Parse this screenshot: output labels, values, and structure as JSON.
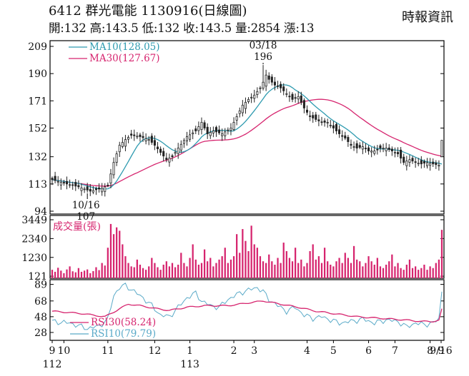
{
  "header": {
    "code": "6412",
    "name": "群光電能",
    "date_tag": "1130916(日線圖)",
    "source": "時報資訊",
    "stats": [
      {
        "label": "開",
        "value": "132"
      },
      {
        "label": "高",
        "value": "143.5"
      },
      {
        "label": "低",
        "value": "132"
      },
      {
        "label": "收",
        "value": "143.5"
      },
      {
        "label": "量",
        "value": "2854"
      },
      {
        "label": "漲",
        "value": "13"
      }
    ]
  },
  "colors": {
    "candle": "#222222",
    "ma10": "#2f9bb0",
    "ma30": "#d6246e",
    "volume": "#d6246e",
    "rsi30": "#d6246e",
    "rsi10": "#5aaac8",
    "frame": "#000000"
  },
  "chart_data": {
    "type": "candlestick",
    "price_panel": {
      "y_ticks": [
        209,
        190,
        171,
        152,
        132,
        113,
        94
      ],
      "ylim": [
        94,
        209
      ],
      "legend": [
        {
          "label": "MA10(128.05)",
          "color": "#2f9bb0"
        },
        {
          "label": "MA30(127.67)",
          "color": "#d6246e"
        }
      ],
      "annotations": [
        {
          "date": "03/18",
          "value": "196",
          "kind": "high"
        },
        {
          "date": "10/16",
          "value": "107",
          "kind": "low"
        }
      ],
      "close_anchors": [
        [
          0,
          116
        ],
        [
          5,
          113
        ],
        [
          9,
          111
        ],
        [
          13,
          108
        ],
        [
          17,
          110
        ],
        [
          19,
          112
        ],
        [
          21,
          128
        ],
        [
          23,
          140
        ],
        [
          25,
          144
        ],
        [
          27,
          147
        ],
        [
          30,
          146
        ],
        [
          33,
          144
        ],
        [
          35,
          140
        ],
        [
          37,
          135
        ],
        [
          39,
          130
        ],
        [
          41,
          132
        ],
        [
          43,
          138
        ],
        [
          46,
          146
        ],
        [
          49,
          150
        ],
        [
          51,
          156
        ],
        [
          53,
          148
        ],
        [
          55,
          150
        ],
        [
          58,
          148
        ],
        [
          61,
          152
        ],
        [
          63,
          160
        ],
        [
          65,
          168
        ],
        [
          67,
          172
        ],
        [
          69,
          175
        ],
        [
          71,
          180
        ],
        [
          72,
          184
        ],
        [
          73,
          189
        ],
        [
          74,
          186
        ],
        [
          76,
          182
        ],
        [
          78,
          180
        ],
        [
          80,
          176
        ],
        [
          82,
          172
        ],
        [
          84,
          174
        ],
        [
          86,
          166
        ],
        [
          88,
          160
        ],
        [
          90,
          158
        ],
        [
          92,
          156
        ],
        [
          94,
          156
        ],
        [
          96,
          152
        ],
        [
          98,
          148
        ],
        [
          100,
          145
        ],
        [
          102,
          140
        ],
        [
          104,
          138
        ],
        [
          106,
          139
        ],
        [
          108,
          136
        ],
        [
          110,
          136
        ],
        [
          112,
          138
        ],
        [
          114,
          138
        ],
        [
          116,
          136
        ],
        [
          118,
          134
        ],
        [
          120,
          128
        ],
        [
          122,
          130
        ],
        [
          124,
          128
        ],
        [
          126,
          127
        ],
        [
          128,
          128
        ],
        [
          130,
          127
        ],
        [
          132,
          126
        ],
        [
          133,
          124
        ],
        [
          134,
          130.5
        ],
        [
          135,
          143.5
        ]
      ]
    },
    "volume_panel": {
      "title": "成交量(張)",
      "y_ticks": [
        3449,
        2340,
        1230,
        121
      ],
      "ylim": [
        121,
        3449
      ],
      "bars": [
        500,
        380,
        620,
        450,
        300,
        520,
        700,
        410,
        350,
        600,
        380,
        450,
        520,
        300,
        420,
        650,
        480,
        900,
        750,
        1800,
        3200,
        2600,
        3000,
        2800,
        2000,
        1300,
        900,
        700,
        650,
        1100,
        800,
        600,
        500,
        700,
        1200,
        900,
        650,
        500,
        800,
        1000,
        700,
        900,
        650,
        800,
        1500,
        900,
        700,
        1200,
        2000,
        1100,
        800,
        900,
        1700,
        1000,
        1200,
        700,
        900,
        1100,
        1300,
        1800,
        900,
        1100,
        1300,
        2600,
        1500,
        2900,
        2200,
        1600,
        3100,
        2000,
        1800,
        1300,
        1000,
        900,
        1400,
        1000,
        800,
        1200,
        900,
        2100,
        1600,
        1200,
        1000,
        1800,
        900,
        1100,
        700,
        900,
        1600,
        2000,
        1100,
        1300,
        900,
        1800,
        1000,
        800,
        700,
        1000,
        1200,
        900,
        1500,
        1200,
        900,
        1900,
        1100,
        1000,
        700,
        900,
        1300,
        1000,
        800,
        1200,
        700,
        600,
        800,
        1000,
        1400,
        700,
        900,
        600,
        500,
        800,
        1100,
        600,
        700,
        500,
        600,
        800,
        500,
        700,
        600,
        900,
        1100,
        2854
      ]
    },
    "rsi_panel": {
      "y_ticks": [
        89,
        68,
        48,
        28
      ],
      "ylim": [
        28,
        89
      ],
      "legend": [
        {
          "label": "RSI30(58.24)",
          "color": "#d6246e"
        },
        {
          "label": "RSI10(79.79)",
          "color": "#5aaac8"
        }
      ],
      "rsi30_anchors": [
        [
          0,
          55
        ],
        [
          10,
          52
        ],
        [
          18,
          48
        ],
        [
          22,
          56
        ],
        [
          26,
          64
        ],
        [
          30,
          62
        ],
        [
          36,
          58
        ],
        [
          40,
          56
        ],
        [
          46,
          60
        ],
        [
          52,
          62
        ],
        [
          60,
          62
        ],
        [
          66,
          65
        ],
        [
          72,
          68
        ],
        [
          78,
          64
        ],
        [
          84,
          60
        ],
        [
          90,
          55
        ],
        [
          96,
          52
        ],
        [
          104,
          48
        ],
        [
          112,
          46
        ],
        [
          120,
          44
        ],
        [
          126,
          42
        ],
        [
          130,
          42
        ],
        [
          133,
          44
        ],
        [
          135,
          58.24
        ]
      ],
      "rsi10_anchors": [
        [
          0,
          42
        ],
        [
          6,
          40
        ],
        [
          12,
          33
        ],
        [
          16,
          36
        ],
        [
          19,
          45
        ],
        [
          21,
          75
        ],
        [
          23,
          85
        ],
        [
          25,
          88
        ],
        [
          28,
          80
        ],
        [
          31,
          72
        ],
        [
          34,
          62
        ],
        [
          37,
          50
        ],
        [
          40,
          48
        ],
        [
          43,
          60
        ],
        [
          46,
          72
        ],
        [
          49,
          78
        ],
        [
          51,
          68
        ],
        [
          54,
          62
        ],
        [
          57,
          60
        ],
        [
          60,
          70
        ],
        [
          64,
          78
        ],
        [
          67,
          82
        ],
        [
          70,
          85
        ],
        [
          72,
          80
        ],
        [
          74,
          70
        ],
        [
          77,
          62
        ],
        [
          80,
          55
        ],
        [
          83,
          60
        ],
        [
          86,
          50
        ],
        [
          89,
          46
        ],
        [
          92,
          48
        ],
        [
          95,
          44
        ],
        [
          98,
          40
        ],
        [
          102,
          42
        ],
        [
          106,
          45
        ],
        [
          110,
          40
        ],
        [
          114,
          44
        ],
        [
          118,
          42
        ],
        [
          121,
          35
        ],
        [
          124,
          40
        ],
        [
          127,
          38
        ],
        [
          130,
          40
        ],
        [
          133,
          48
        ],
        [
          135,
          79.79
        ]
      ]
    },
    "x_axis": {
      "ticks": [
        {
          "index": 0,
          "label": "9",
          "sub": "112"
        },
        {
          "index": 4,
          "label": "10",
          "sub": ""
        },
        {
          "index": 19,
          "label": "11",
          "sub": ""
        },
        {
          "index": 35,
          "label": "12",
          "sub": ""
        },
        {
          "index": 47,
          "label": "1",
          "sub": "113"
        },
        {
          "index": 62,
          "label": "2",
          "sub": ""
        },
        {
          "index": 69,
          "label": "3",
          "sub": ""
        },
        {
          "index": 87,
          "label": "4",
          "sub": ""
        },
        {
          "index": 96,
          "label": "5",
          "sub": ""
        },
        {
          "index": 108,
          "label": "6",
          "sub": ""
        },
        {
          "index": 117,
          "label": "7",
          "sub": ""
        },
        {
          "index": 129,
          "label": "8",
          "sub": ""
        },
        {
          "index": 142,
          "label": "9",
          "sub": ""
        },
        {
          "index": 146,
          "label": "9/16",
          "sub": ""
        }
      ]
    }
  }
}
